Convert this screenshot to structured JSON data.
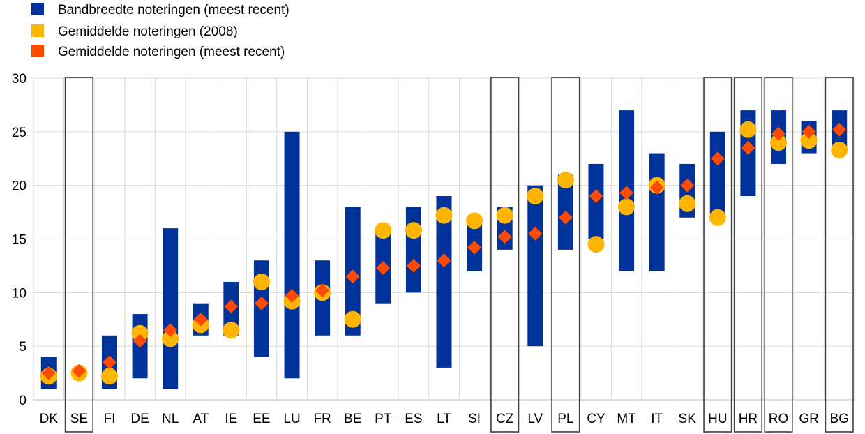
{
  "chart_data": {
    "type": "range-dot",
    "title": "",
    "xlabel": "",
    "ylabel": "",
    "ylim": [
      0,
      30
    ],
    "yticks": [
      0,
      5,
      10,
      15,
      20,
      25,
      30
    ],
    "grid": "vertical",
    "legend_position": "top-left",
    "categories": [
      "DK",
      "SE",
      "FI",
      "DE",
      "NL",
      "AT",
      "IE",
      "EE",
      "LU",
      "FR",
      "BE",
      "PT",
      "ES",
      "LT",
      "SI",
      "CZ",
      "LV",
      "PL",
      "CY",
      "MT",
      "IT",
      "SK",
      "HU",
      "HR",
      "RO",
      "GR",
      "BG"
    ],
    "highlighted": [
      "SE",
      "CZ",
      "PL",
      "HU",
      "HR",
      "RO",
      "BG"
    ],
    "series": [
      {
        "name": "Bandbreedte noteringen (meest recent)",
        "kind": "range",
        "color": "#003299",
        "values": [
          [
            1,
            4
          ],
          [
            2.5,
            2.5
          ],
          [
            1,
            6
          ],
          [
            2,
            8
          ],
          [
            1,
            16
          ],
          [
            6,
            9
          ],
          [
            6,
            11
          ],
          [
            4,
            13
          ],
          [
            2,
            25
          ],
          [
            6,
            13
          ],
          [
            6,
            18
          ],
          [
            9,
            16
          ],
          [
            10,
            18
          ],
          [
            3,
            19
          ],
          [
            12,
            17
          ],
          [
            14,
            18
          ],
          [
            5,
            20
          ],
          [
            14,
            21
          ],
          [
            15,
            22
          ],
          [
            12,
            27
          ],
          [
            12,
            23
          ],
          [
            17,
            22
          ],
          [
            17,
            25
          ],
          [
            19,
            27
          ],
          [
            22,
            27
          ],
          [
            23,
            26
          ],
          [
            23,
            27
          ]
        ]
      },
      {
        "name": "Gemiddelde noteringen (2008)",
        "kind": "circle",
        "color": "#FFB400",
        "values": [
          2.2,
          2.5,
          2.2,
          6.2,
          5.7,
          7.0,
          6.5,
          11.0,
          9.2,
          10.0,
          7.5,
          15.8,
          15.8,
          17.2,
          16.7,
          17.2,
          19.0,
          20.5,
          14.5,
          18.0,
          20.0,
          18.3,
          17.0,
          25.2,
          24.0,
          24.2,
          23.3
        ]
      },
      {
        "name": "Gemiddelde noteringen (meest recent)",
        "kind": "diamond",
        "color": "#FF4B00",
        "values": [
          2.5,
          2.7,
          3.5,
          5.5,
          6.5,
          7.5,
          8.7,
          9.0,
          9.7,
          10.2,
          11.5,
          12.3,
          12.5,
          13.0,
          14.2,
          15.2,
          15.5,
          17.0,
          19.0,
          19.3,
          19.8,
          20.0,
          22.5,
          23.5,
          24.8,
          25.0,
          25.2
        ]
      }
    ]
  }
}
